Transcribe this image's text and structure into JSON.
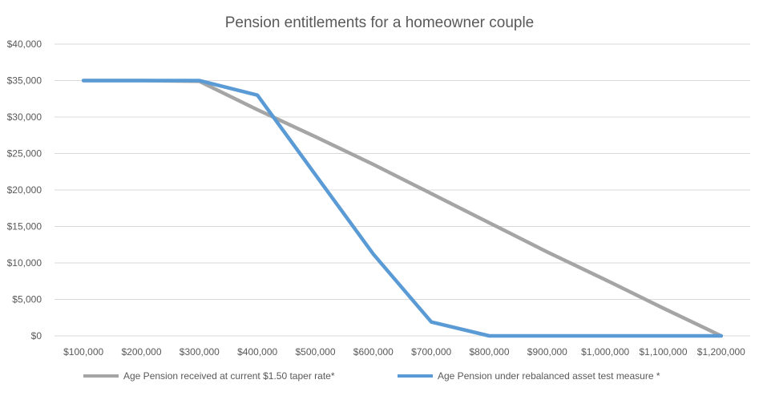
{
  "chart_data": {
    "type": "line",
    "title": "Pension entitlements for a homeowner couple",
    "categories": [
      "$100,000",
      "$200,000",
      "$300,000",
      "$400,000",
      "$500,000",
      "$600,000",
      "$700,000",
      "$800,000",
      "$900,000",
      "$1,000,000",
      "$1,100,000",
      "$1,200,000"
    ],
    "x": [
      100000,
      200000,
      300000,
      400000,
      500000,
      600000,
      700000,
      800000,
      900000,
      1000000,
      1100000,
      1200000
    ],
    "ylim": [
      0,
      40000
    ],
    "yticks": [
      0,
      5000,
      10000,
      15000,
      20000,
      25000,
      30000,
      35000,
      40000
    ],
    "ytick_labels": [
      "$0",
      "$5,000",
      "$10,000",
      "$15,000",
      "$20,000",
      "$25,000",
      "$30,000",
      "$35,000",
      "$40,000"
    ],
    "grid": true,
    "legend_position": "bottom",
    "series": [
      {
        "name": "Age Pension received at current $1.50 taper rate*",
        "color": "#a5a5a5",
        "values": [
          35000,
          35000,
          34900,
          31000,
          27300,
          23500,
          19500,
          15500,
          11500,
          7700,
          3800,
          0
        ]
      },
      {
        "name": "Age Pension under rebalanced asset test measure *",
        "color": "#5b9bd5",
        "values": [
          35000,
          35000,
          35000,
          33000,
          22100,
          11200,
          1900,
          0,
          0,
          0,
          0,
          0
        ]
      }
    ]
  }
}
